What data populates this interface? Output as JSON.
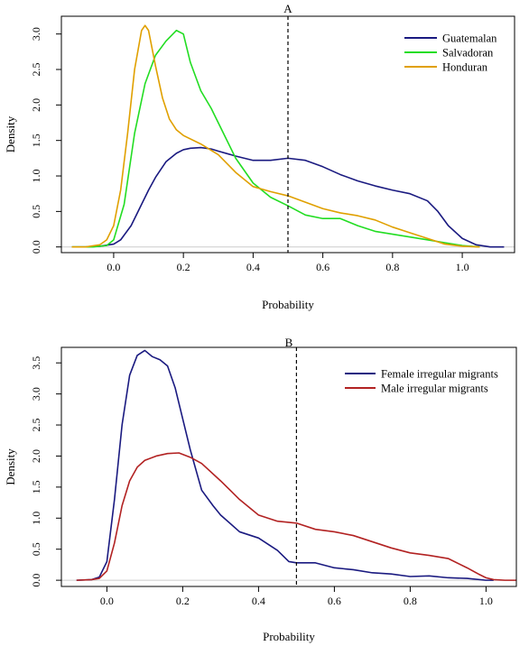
{
  "chart_data": [
    {
      "type": "line",
      "title": "A",
      "xlabel": "Probability",
      "ylabel": "Density",
      "xlim": [
        -0.15,
        1.15
      ],
      "ylim": [
        -0.08,
        3.25
      ],
      "xticks": [
        "0.0",
        "0.2",
        "0.4",
        "0.6",
        "0.8",
        "1.0"
      ],
      "yticks": [
        "0.0",
        "0.5",
        "1.0",
        "1.5",
        "2.0",
        "2.5",
        "3.0"
      ],
      "reference_line_x": 0.5,
      "legend_position": "top-right",
      "series": [
        {
          "name": "Guatemalan",
          "color": "#1a1a80",
          "x": [
            -0.12,
            -0.08,
            -0.04,
            0.0,
            0.02,
            0.05,
            0.08,
            0.1,
            0.12,
            0.15,
            0.18,
            0.2,
            0.22,
            0.25,
            0.28,
            0.3,
            0.35,
            0.4,
            0.45,
            0.5,
            0.55,
            0.6,
            0.65,
            0.7,
            0.75,
            0.8,
            0.85,
            0.9,
            0.93,
            0.96,
            1.0,
            1.04,
            1.08,
            1.12
          ],
          "y": [
            0.0,
            0.0,
            0.01,
            0.04,
            0.1,
            0.3,
            0.6,
            0.8,
            0.98,
            1.2,
            1.32,
            1.37,
            1.39,
            1.4,
            1.38,
            1.35,
            1.28,
            1.22,
            1.22,
            1.25,
            1.22,
            1.13,
            1.02,
            0.93,
            0.86,
            0.8,
            0.75,
            0.65,
            0.5,
            0.3,
            0.12,
            0.03,
            0.0,
            0.0
          ]
        },
        {
          "name": "Salvadoran",
          "color": "#22dd22",
          "x": [
            -0.12,
            -0.06,
            -0.02,
            0.0,
            0.03,
            0.06,
            0.09,
            0.12,
            0.15,
            0.18,
            0.2,
            0.22,
            0.25,
            0.28,
            0.3,
            0.35,
            0.4,
            0.45,
            0.5,
            0.55,
            0.6,
            0.65,
            0.7,
            0.75,
            0.8,
            0.85,
            0.9,
            0.95,
            1.0,
            1.05
          ],
          "y": [
            0.0,
            0.0,
            0.02,
            0.1,
            0.6,
            1.6,
            2.3,
            2.7,
            2.9,
            3.05,
            3.0,
            2.6,
            2.2,
            1.95,
            1.75,
            1.25,
            0.9,
            0.7,
            0.58,
            0.45,
            0.4,
            0.4,
            0.3,
            0.22,
            0.18,
            0.14,
            0.1,
            0.06,
            0.02,
            0.0
          ]
        },
        {
          "name": "Honduran",
          "color": "#e0a000",
          "x": [
            -0.12,
            -0.08,
            -0.04,
            -0.02,
            0.0,
            0.02,
            0.04,
            0.06,
            0.08,
            0.09,
            0.1,
            0.12,
            0.14,
            0.16,
            0.18,
            0.2,
            0.25,
            0.3,
            0.35,
            0.4,
            0.45,
            0.5,
            0.55,
            0.6,
            0.65,
            0.7,
            0.75,
            0.8,
            0.85,
            0.9,
            0.95,
            1.0,
            1.05
          ],
          "y": [
            0.0,
            0.0,
            0.03,
            0.1,
            0.3,
            0.8,
            1.6,
            2.5,
            3.05,
            3.12,
            3.05,
            2.55,
            2.1,
            1.8,
            1.65,
            1.57,
            1.45,
            1.3,
            1.05,
            0.85,
            0.78,
            0.72,
            0.63,
            0.54,
            0.48,
            0.44,
            0.38,
            0.28,
            0.2,
            0.12,
            0.04,
            0.01,
            0.0
          ]
        }
      ]
    },
    {
      "type": "line",
      "title": "B",
      "xlabel": "Probability",
      "ylabel": "Density",
      "xlim": [
        -0.12,
        1.08
      ],
      "ylim": [
        -0.1,
        3.75
      ],
      "xticks": [
        "0.0",
        "0.2",
        "0.4",
        "0.6",
        "0.8",
        "1.0"
      ],
      "yticks": [
        "0.0",
        "0.5",
        "1.0",
        "1.5",
        "2.0",
        "2.5",
        "3.0",
        "3.5"
      ],
      "reference_line_x": 0.5,
      "legend_position": "top-right",
      "series": [
        {
          "name": "Female irregular migrants",
          "color": "#1a1a80",
          "x": [
            -0.08,
            -0.04,
            -0.02,
            0.0,
            0.02,
            0.04,
            0.06,
            0.08,
            0.1,
            0.12,
            0.14,
            0.16,
            0.18,
            0.2,
            0.22,
            0.25,
            0.28,
            0.3,
            0.35,
            0.4,
            0.45,
            0.48,
            0.5,
            0.55,
            0.6,
            0.65,
            0.7,
            0.75,
            0.8,
            0.85,
            0.9,
            0.95,
            1.0,
            1.02
          ],
          "y": [
            0.0,
            0.01,
            0.05,
            0.3,
            1.3,
            2.5,
            3.3,
            3.62,
            3.7,
            3.6,
            3.55,
            3.45,
            3.1,
            2.6,
            2.1,
            1.45,
            1.2,
            1.05,
            0.78,
            0.68,
            0.48,
            0.3,
            0.28,
            0.28,
            0.2,
            0.17,
            0.12,
            0.1,
            0.06,
            0.07,
            0.04,
            0.03,
            0.0,
            0.0
          ]
        },
        {
          "name": "Male irregular migrants",
          "color": "#b22222",
          "x": [
            -0.08,
            -0.04,
            -0.02,
            0.0,
            0.02,
            0.04,
            0.06,
            0.08,
            0.1,
            0.13,
            0.16,
            0.19,
            0.22,
            0.25,
            0.3,
            0.35,
            0.4,
            0.45,
            0.5,
            0.55,
            0.6,
            0.65,
            0.7,
            0.75,
            0.8,
            0.85,
            0.9,
            0.95,
            0.98,
            1.0,
            1.02,
            1.05,
            1.08
          ],
          "y": [
            0.0,
            0.01,
            0.03,
            0.15,
            0.6,
            1.2,
            1.6,
            1.82,
            1.93,
            2.0,
            2.04,
            2.05,
            1.98,
            1.88,
            1.6,
            1.3,
            1.05,
            0.95,
            0.92,
            0.82,
            0.78,
            0.72,
            0.62,
            0.52,
            0.44,
            0.4,
            0.35,
            0.2,
            0.1,
            0.04,
            0.01,
            0.0,
            0.0
          ]
        }
      ]
    }
  ]
}
